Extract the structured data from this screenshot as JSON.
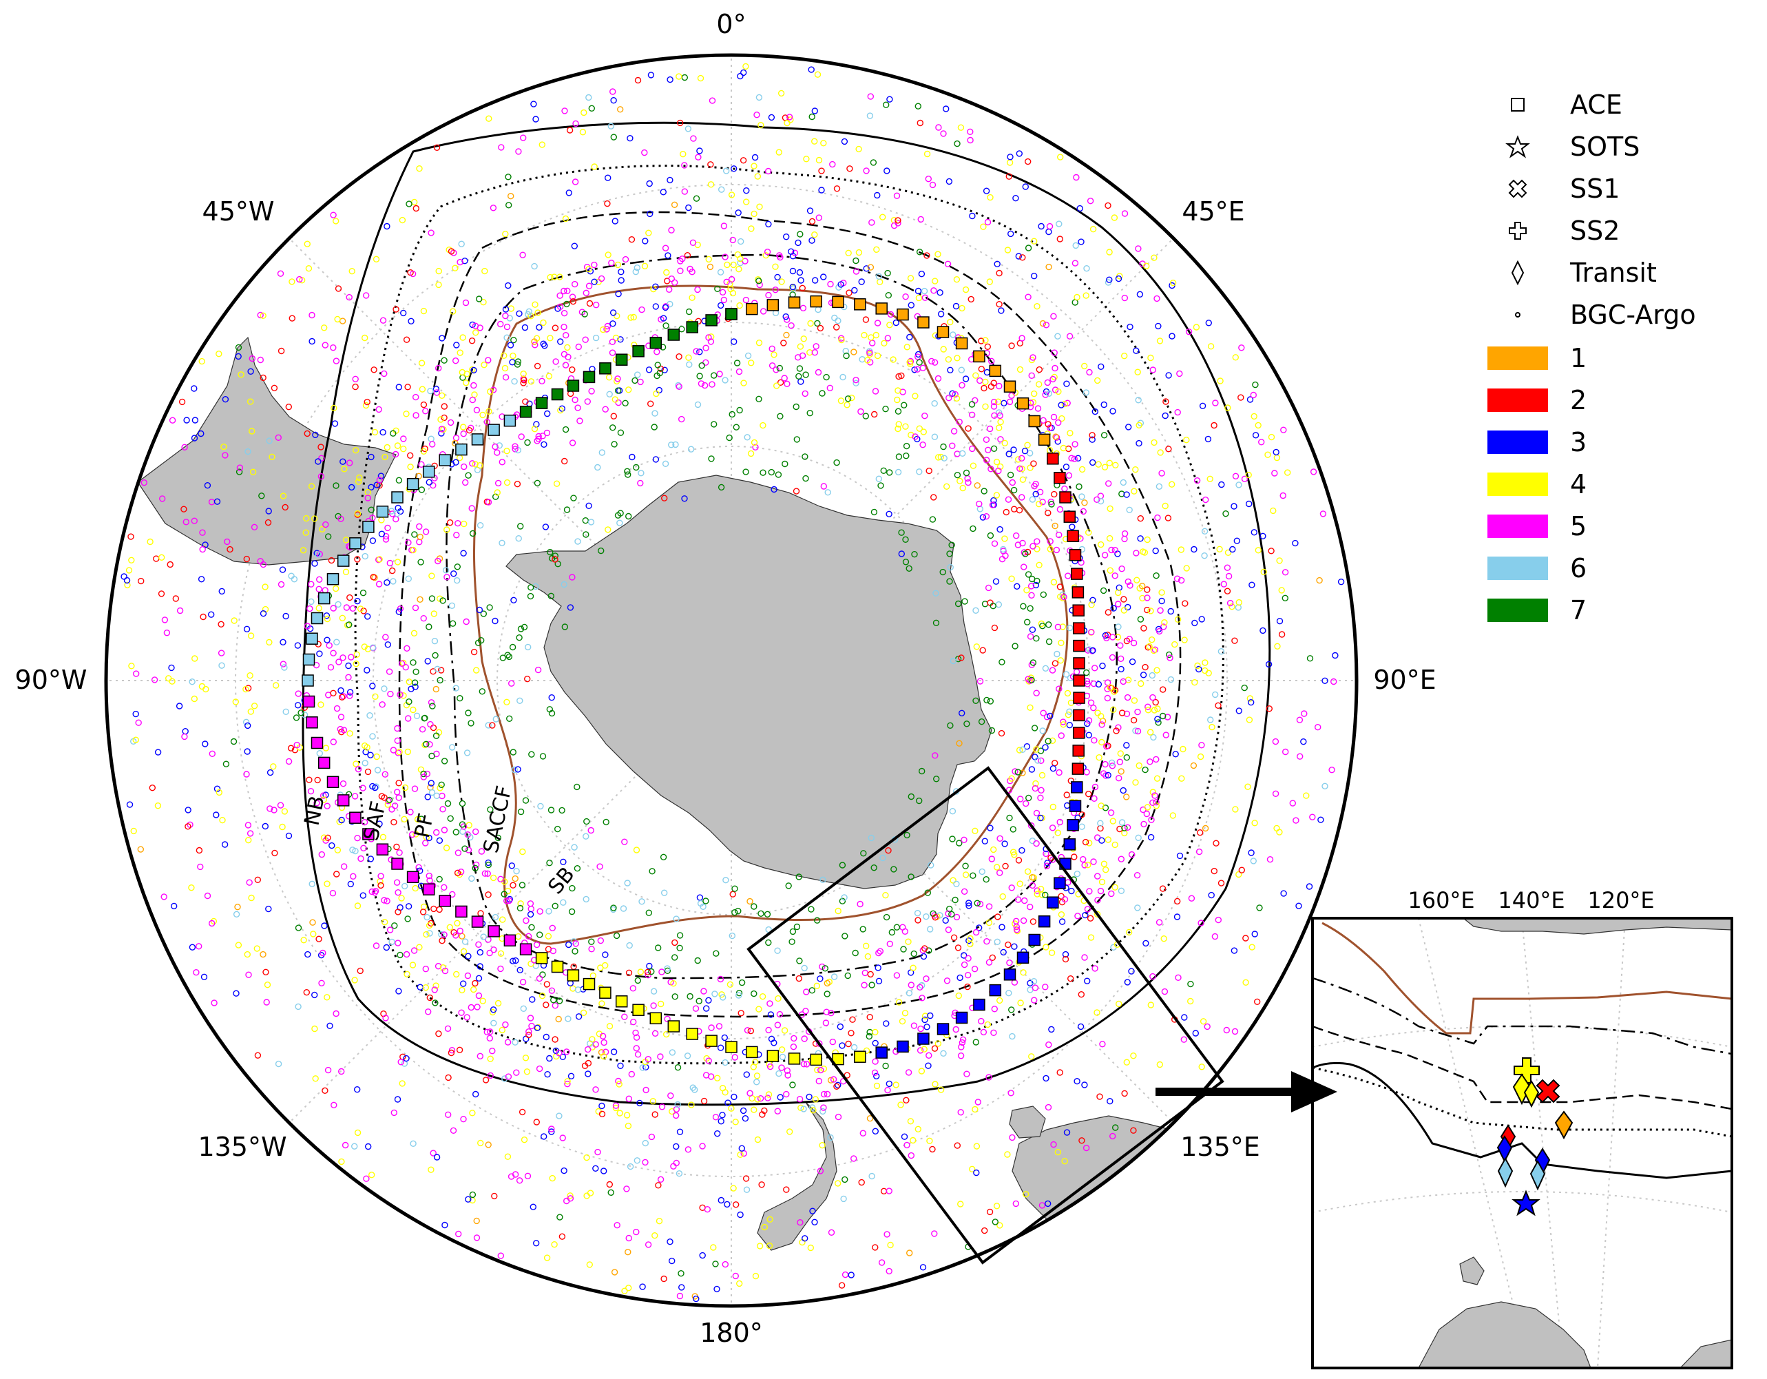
{
  "map": {
    "projection": "south-polar-stereographic",
    "longitude_labels": {
      "lon_0": "0°",
      "lon_45E": "45°E",
      "lon_90E": "90°E",
      "lon_135E": "135°E",
      "lon_180": "180°",
      "lon_135W": "135°W",
      "lon_90W": "90°W",
      "lon_45W": "45°W"
    },
    "front_labels": {
      "NB": "NB",
      "SAF": "SAF",
      "PF": "PF",
      "SACCF": "SACCF",
      "SB": "SB"
    },
    "land_color": "#c0c0c0",
    "front_colors": {
      "SB": "#a0522d",
      "others": "#000000"
    }
  },
  "legend": {
    "symbols": [
      {
        "label": "ACE",
        "icon": "square-marker-icon"
      },
      {
        "label": "SOTS",
        "icon": "star-marker-icon"
      },
      {
        "label": "SS1",
        "icon": "x-cross-marker-icon"
      },
      {
        "label": "SS2",
        "icon": "plus-marker-icon"
      },
      {
        "label": "Transit",
        "icon": "diamond-marker-icon"
      },
      {
        "label": "BGC-Argo",
        "icon": "small-circle-marker-icon"
      }
    ],
    "classes": [
      {
        "label": "1",
        "color": "#ffa500"
      },
      {
        "label": "2",
        "color": "#ff0000"
      },
      {
        "label": "3",
        "color": "#0000ff"
      },
      {
        "label": "4",
        "color": "#ffff00"
      },
      {
        "label": "5",
        "color": "#ff00ff"
      },
      {
        "label": "6",
        "color": "#87ceeb"
      },
      {
        "label": "7",
        "color": "#008000"
      }
    ]
  },
  "inset": {
    "longitude_labels": {
      "lon_160E": "160°E",
      "lon_140E": "140°E",
      "lon_120E": "120°E"
    }
  }
}
